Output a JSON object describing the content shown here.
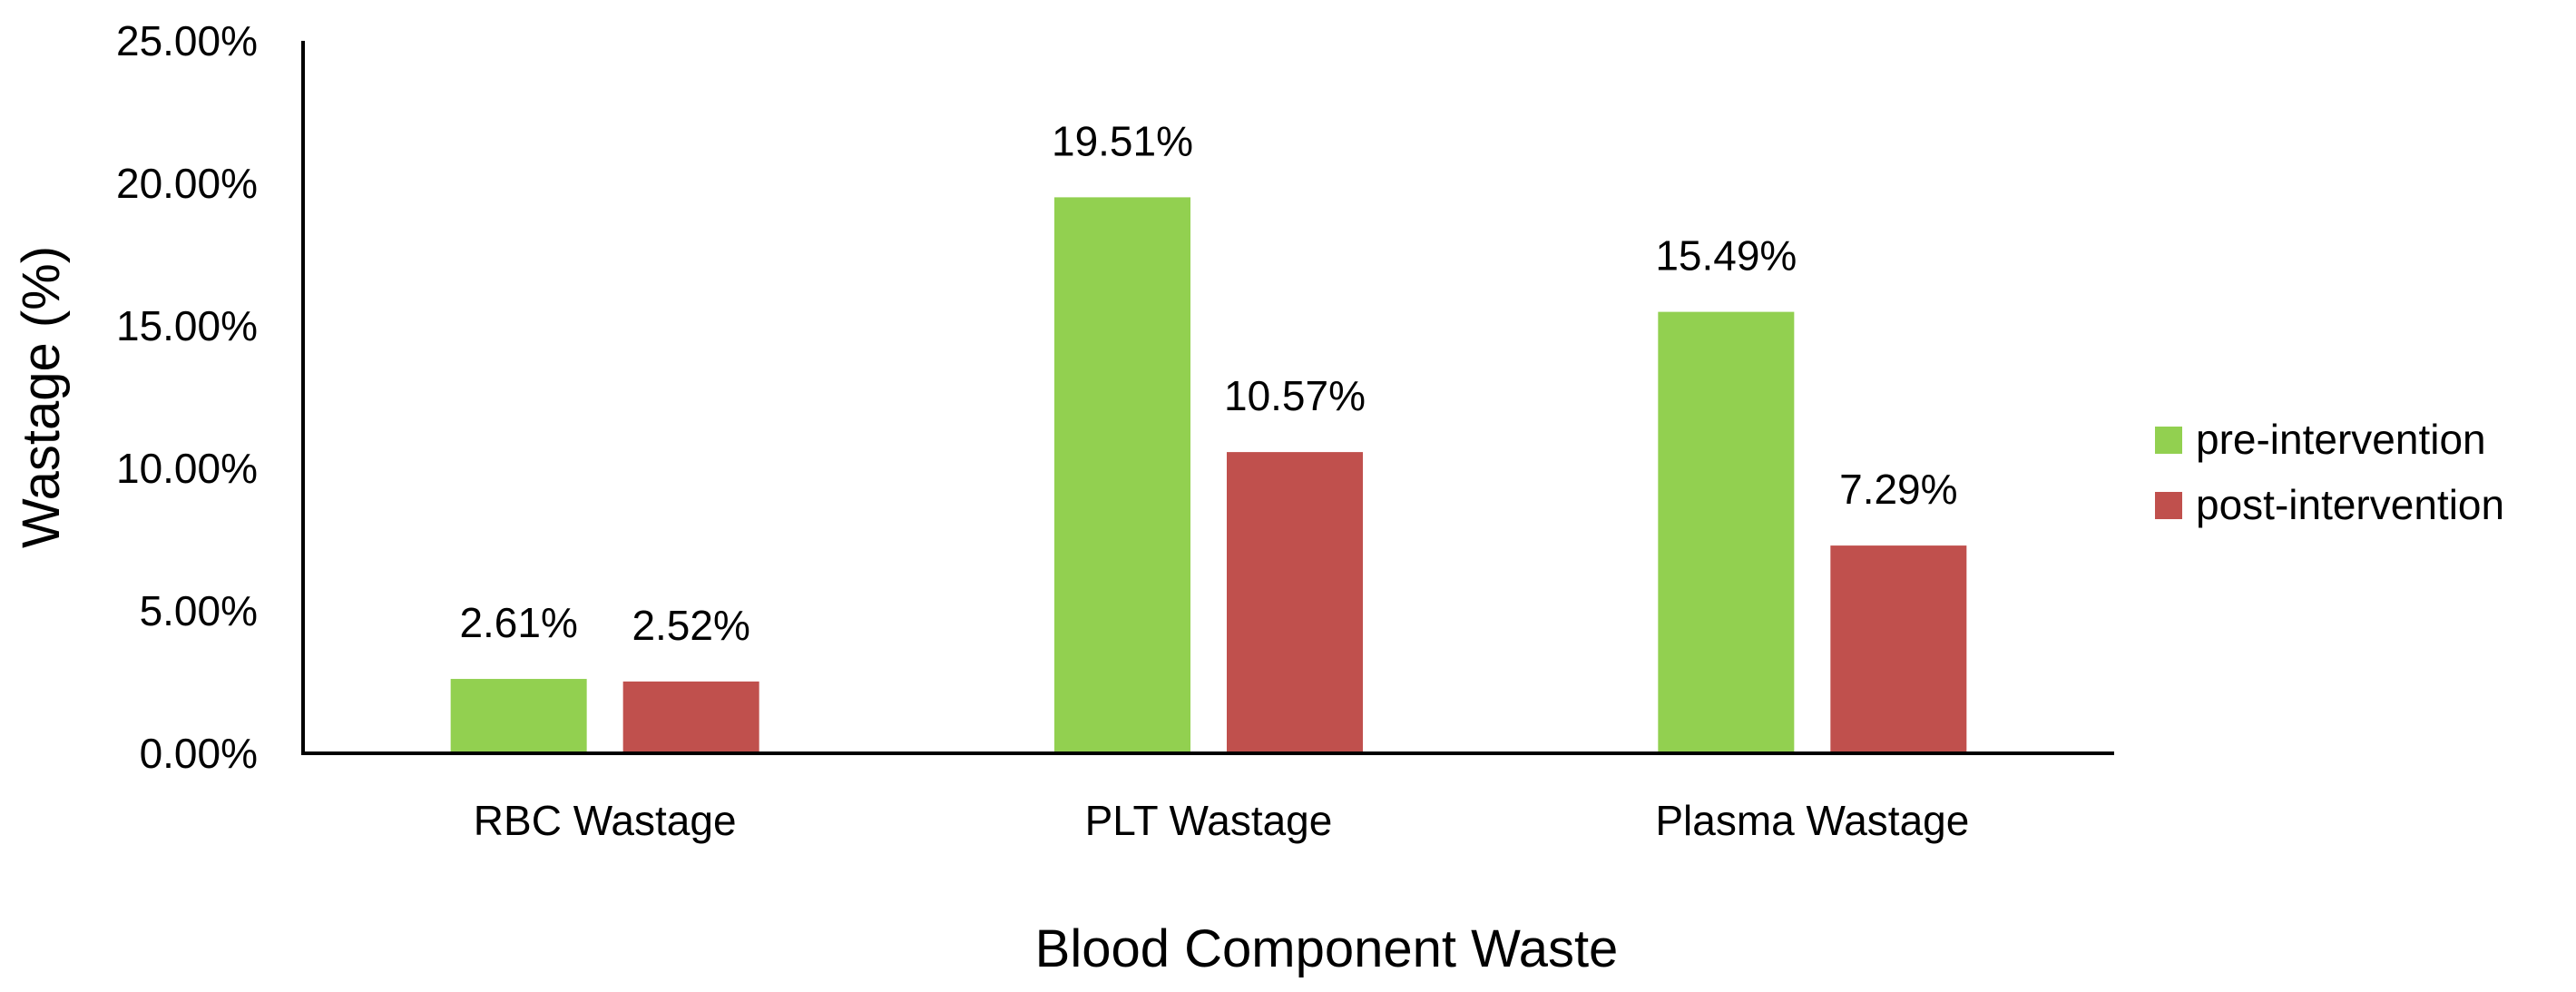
{
  "chart_data": {
    "type": "bar",
    "title": "",
    "xlabel": "Blood Component Waste",
    "ylabel": "Wastage (%)",
    "categories": [
      "RBC Wastage",
      "PLT Wastage",
      "Plasma Wastage"
    ],
    "series": [
      {
        "name": "pre-intervention",
        "color": "#92D050",
        "values": [
          2.61,
          19.51,
          15.49
        ],
        "labels": [
          "2.61%",
          "19.51%",
          "15.49%"
        ]
      },
      {
        "name": "post-intervention",
        "color": "#C0504D",
        "values": [
          2.52,
          10.57,
          7.29
        ],
        "labels": [
          "2.52%",
          "10.57%",
          "7.29%"
        ]
      }
    ],
    "ylim": [
      0,
      25
    ],
    "yticks": [
      0,
      5,
      10,
      15,
      20,
      25
    ],
    "ytick_labels": [
      "0.00%",
      "5.00%",
      "10.00%",
      "15.00%",
      "20.00%",
      "25.00%"
    ],
    "grid": false,
    "legend_position": "right"
  }
}
